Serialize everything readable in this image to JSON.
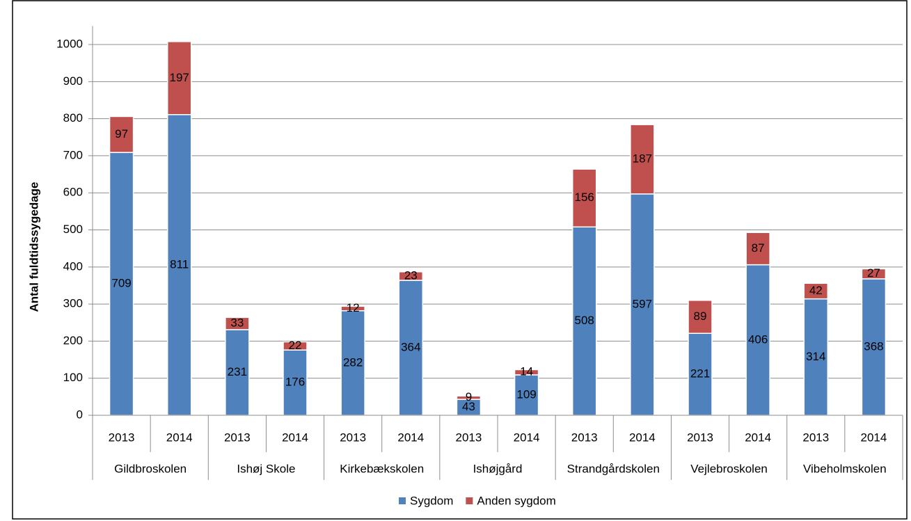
{
  "chart_data": {
    "type": "stacked_bar",
    "y_label": "Antal fuldtidssygedage",
    "categories": [
      "2013",
      "2014",
      "2013",
      "2014",
      "2013",
      "2014",
      "2013",
      "2014",
      "2013",
      "2014",
      "2013",
      "2014",
      "2013",
      "2014"
    ],
    "group_labels": [
      "Gildbroskolen",
      "Ishøj Skole",
      "Kirkebækskolen",
      "Ishøjgård",
      "Strandgårdskolen",
      "Vejlebroskolen",
      "Vibeholmskolen"
    ],
    "series": [
      {
        "name": "Sygdom",
        "color": "#4f81bd",
        "values": [
          709,
          811,
          231,
          176,
          282,
          364,
          43,
          109,
          508,
          597,
          221,
          406,
          314,
          368
        ]
      },
      {
        "name": "Anden sygdom",
        "color": "#c0504d",
        "values": [
          97,
          197,
          33,
          22,
          12,
          23,
          9,
          14,
          156,
          187,
          89,
          87,
          42,
          27
        ]
      }
    ],
    "ylim": [
      0,
      1050
    ],
    "yticks": [
      0,
      100,
      200,
      300,
      400,
      500,
      600,
      700,
      800,
      900,
      1000
    ],
    "grid": true
  }
}
